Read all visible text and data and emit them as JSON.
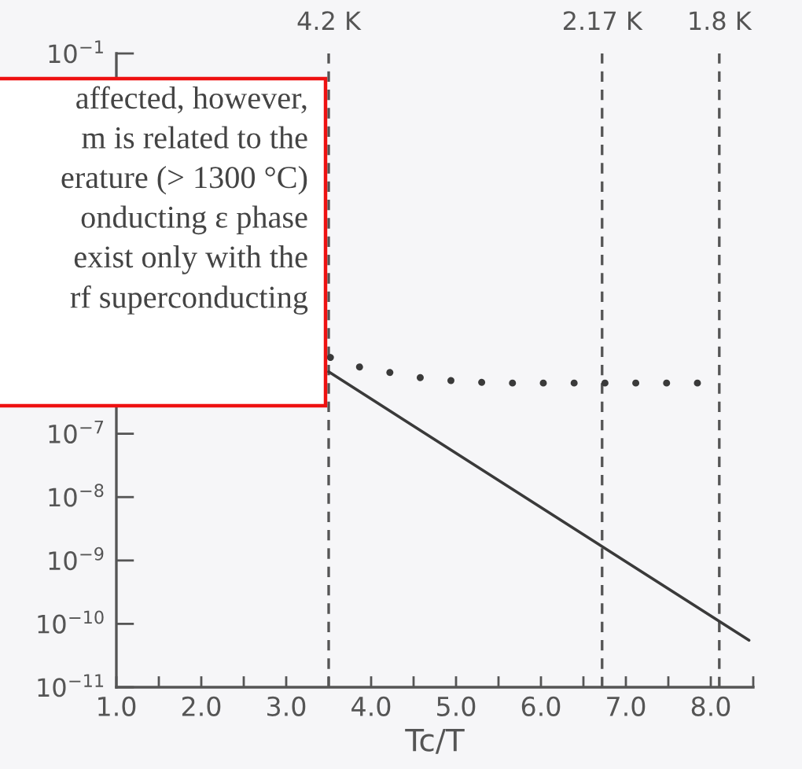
{
  "chart_data": {
    "type": "line",
    "xlabel": "Tc/T",
    "log": true,
    "xlim": [
      1.0,
      8.5
    ],
    "ylim": [
      1e-11,
      0.1
    ],
    "xticks": [
      {
        "value": 1.0,
        "label": "1.0"
      },
      {
        "value": 1.5,
        "label": null
      },
      {
        "value": 2.0,
        "label": "2.0"
      },
      {
        "value": 2.5,
        "label": null
      },
      {
        "value": 3.0,
        "label": "3.0"
      },
      {
        "value": 3.5,
        "label": null
      },
      {
        "value": 4.0,
        "label": "4.0"
      },
      {
        "value": 4.5,
        "label": null
      },
      {
        "value": 5.0,
        "label": "5.0"
      },
      {
        "value": 5.5,
        "label": null
      },
      {
        "value": 6.0,
        "label": "6.0"
      },
      {
        "value": 6.5,
        "label": null
      },
      {
        "value": 7.0,
        "label": "7.0"
      },
      {
        "value": 7.5,
        "label": null
      },
      {
        "value": 8.0,
        "label": "8.0"
      },
      {
        "value": 8.5,
        "label": null
      }
    ],
    "yticks": [
      {
        "value": 1e-11,
        "label": "10$^{−11}$"
      },
      {
        "value": 1e-10,
        "label": "10$^{−10}$"
      },
      {
        "value": 1e-09,
        "label": "10$^{−9}$"
      },
      {
        "value": 1e-08,
        "label": "10$^{−8}$"
      },
      {
        "value": 1e-07,
        "label": "10$^{−7}$"
      },
      {
        "value": 1e-06,
        "label": null
      },
      {
        "value": 1e-05,
        "label": null
      },
      {
        "value": 0.0001,
        "label": null
      },
      {
        "value": 0.001,
        "label": null
      },
      {
        "value": 0.01,
        "label": null
      },
      {
        "value": 0.1,
        "label": "10$^{−1}$"
      }
    ],
    "series": [
      {
        "color": "#3a3a3a",
        "line_style": "solid",
        "x": [
          3.5,
          8.45
        ],
        "values": [
          9.5e-07,
          5.5e-11
        ]
      },
      {
        "color": "#3a3a3a",
        "line_style": "dotted",
        "x": [
          3.52,
          3.75,
          4.0,
          4.25,
          4.5,
          4.75,
          5.0,
          5.25,
          5.5,
          6.0,
          7.0,
          8.0
        ],
        "values": [
          1.6e-06,
          1.2e-06,
          1.05e-06,
          9.1e-07,
          7.9e-07,
          7.2e-07,
          6.8e-07,
          6.5e-07,
          6.3e-07,
          6.3e-07,
          6.3e-07,
          6.3e-07
        ]
      }
    ],
    "ref_lines": [
      {
        "axis": "x",
        "value": 3.5,
        "label": "4.2 K",
        "line_style": "dashed",
        "color": "#555555"
      },
      {
        "axis": "x",
        "value": 6.72,
        "label": "2.17 K",
        "line_style": "dashed",
        "color": "#555555"
      },
      {
        "axis": "x",
        "value": 8.1,
        "label": "1.8 K",
        "line_style": "dashed",
        "color": "#555555"
      }
    ],
    "annotations": [
      "affected, however,\nm is related to the\nerature (> 1300 °C)\nonducting ε phase\nexist only with the\nrf superconducting"
    ],
    "grid": false,
    "legend": false,
    "marker": "none"
  }
}
